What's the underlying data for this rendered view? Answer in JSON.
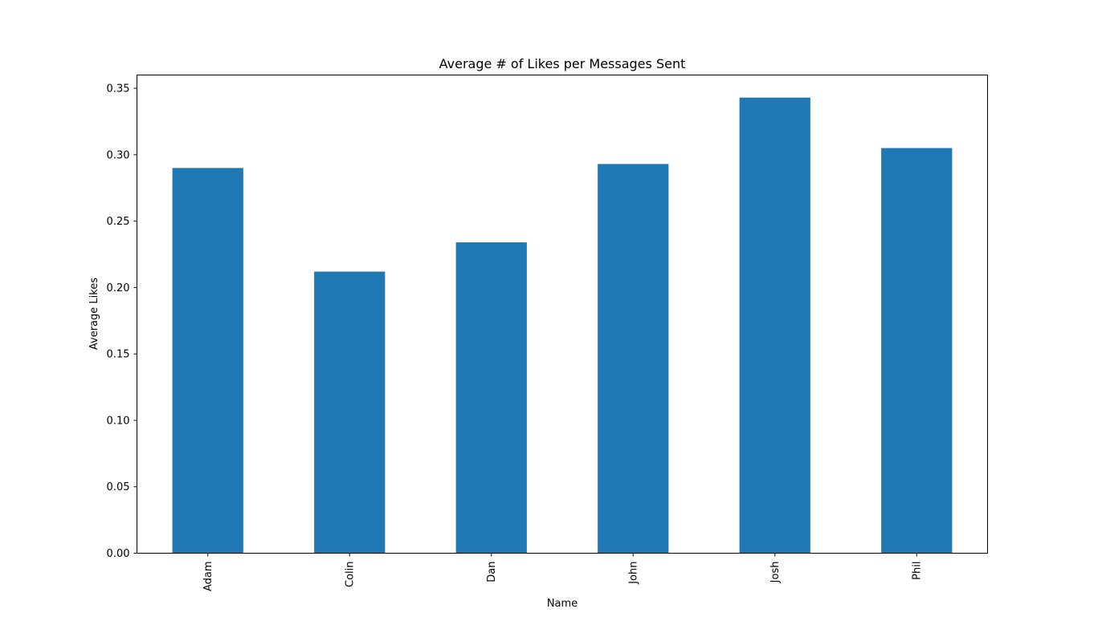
{
  "chart_data": {
    "type": "bar",
    "title": "Average # of Likes per Messages Sent",
    "xlabel": "Name",
    "ylabel": "Average Likes",
    "categories": [
      "Adam",
      "Colin",
      "Dan",
      "John",
      "Josh",
      "Phil"
    ],
    "values": [
      0.29,
      0.212,
      0.234,
      0.293,
      0.343,
      0.305
    ],
    "ylim": [
      0,
      0.36
    ],
    "yticks": [
      "0.00",
      "0.05",
      "0.10",
      "0.15",
      "0.20",
      "0.25",
      "0.30",
      "0.35"
    ],
    "grid": false,
    "legend": "none",
    "bar_color": "#1f77b4"
  }
}
